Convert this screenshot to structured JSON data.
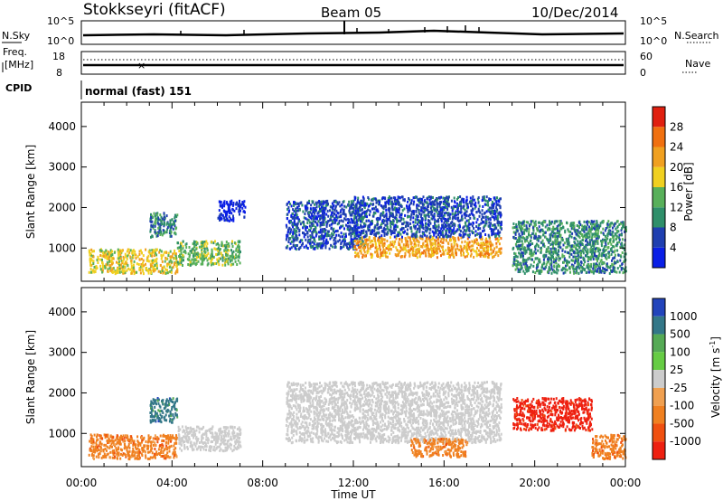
{
  "header": {
    "station": "Stokkseyri (fitACF)",
    "beam": "Beam 05",
    "date": "10/Dec/2014"
  },
  "status_panels": {
    "nsky_label": "N.Sky",
    "nsky_ticks": [
      "10^5",
      "10^0"
    ],
    "nsearch_label": "N.Search",
    "nsearch_ticks": [
      "10^5",
      "10^0"
    ],
    "freq_label_line1": "Freq.",
    "freq_label_line2": "[MHz]",
    "freq_ticks": [
      "18",
      "8"
    ],
    "nave_label": "Nave",
    "nave_ticks": [
      "60",
      "0"
    ],
    "cpid_label": "CPID",
    "cpid_value": "normal (fast) 151"
  },
  "colors": {
    "power": [
      "#0a1fe6",
      "#1f3fb0",
      "#2f8f6a",
      "#58b05a",
      "#f0d020",
      "#f0a020",
      "#f07010",
      "#e02010"
    ],
    "velocity": [
      "#2244bb",
      "#337788",
      "#55aa55",
      "#66cc44",
      "#cccccc",
      "#f0a050",
      "#f08020",
      "#f05010",
      "#ee2010"
    ]
  },
  "chart_data": [
    {
      "type": "heatmap",
      "name": "power",
      "xlabel": "",
      "ylabel": "Slant Range [km]",
      "x_ticks": [
        "00:00",
        "04:00",
        "08:00",
        "12:00",
        "16:00",
        "20:00",
        "00:00"
      ],
      "y_ticks": [
        1000,
        2000,
        3000,
        4000
      ],
      "ylim": [
        180,
        4600
      ],
      "xlim_hours": [
        0,
        24
      ],
      "colorbar": {
        "label": "Power [dB]",
        "ticks": [
          4,
          8,
          12,
          16,
          20,
          24,
          28
        ],
        "range": [
          0,
          32
        ]
      },
      "echo_regions": [
        {
          "x": [
            0.3,
            4.2
          ],
          "y": [
            400,
            1000
          ],
          "value": 18
        },
        {
          "x": [
            3.0,
            4.2
          ],
          "y": [
            1300,
            1900
          ],
          "value": 12
        },
        {
          "x": [
            4.2,
            7.0
          ],
          "y": [
            600,
            1200
          ],
          "value": 14
        },
        {
          "x": [
            6.0,
            7.2
          ],
          "y": [
            1700,
            2200
          ],
          "value": 4
        },
        {
          "x": [
            9.0,
            12.5
          ],
          "y": [
            1000,
            2200
          ],
          "value": 6
        },
        {
          "x": [
            12.0,
            18.5
          ],
          "y": [
            800,
            1300
          ],
          "value": 24
        },
        {
          "x": [
            12.0,
            18.5
          ],
          "y": [
            1300,
            2300
          ],
          "value": 6
        },
        {
          "x": [
            19.0,
            24.0
          ],
          "y": [
            400,
            1700
          ],
          "value": 10
        }
      ]
    },
    {
      "type": "heatmap",
      "name": "velocity",
      "xlabel": "Time UT",
      "ylabel": "Slant Range [km]",
      "x_ticks": [
        "00:00",
        "04:00",
        "08:00",
        "12:00",
        "16:00",
        "20:00",
        "00:00"
      ],
      "y_ticks": [
        1000,
        2000,
        3000,
        4000
      ],
      "ylim": [
        180,
        4600
      ],
      "xlim_hours": [
        0,
        24
      ],
      "colorbar": {
        "label": "Velocity [m s^-1]",
        "ticks": [
          "1000",
          "500",
          "100",
          "25",
          "-25",
          "-100",
          "-500",
          "-1000"
        ]
      },
      "echo_regions": [
        {
          "x": [
            0.3,
            4.2
          ],
          "y": [
            400,
            1000
          ],
          "value": -300
        },
        {
          "x": [
            4.2,
            7.0
          ],
          "y": [
            600,
            1200
          ],
          "value": 0
        },
        {
          "x": [
            3.0,
            4.2
          ],
          "y": [
            1300,
            1900
          ],
          "value": 400
        },
        {
          "x": [
            9.0,
            18.5
          ],
          "y": [
            800,
            2300
          ],
          "value": 0
        },
        {
          "x": [
            14.5,
            17.0
          ],
          "y": [
            450,
            900
          ],
          "value": -300
        },
        {
          "x": [
            19.0,
            22.5
          ],
          "y": [
            1100,
            1900
          ],
          "value": -1000
        },
        {
          "x": [
            22.5,
            24.0
          ],
          "y": [
            400,
            1000
          ],
          "value": -400
        }
      ]
    }
  ]
}
